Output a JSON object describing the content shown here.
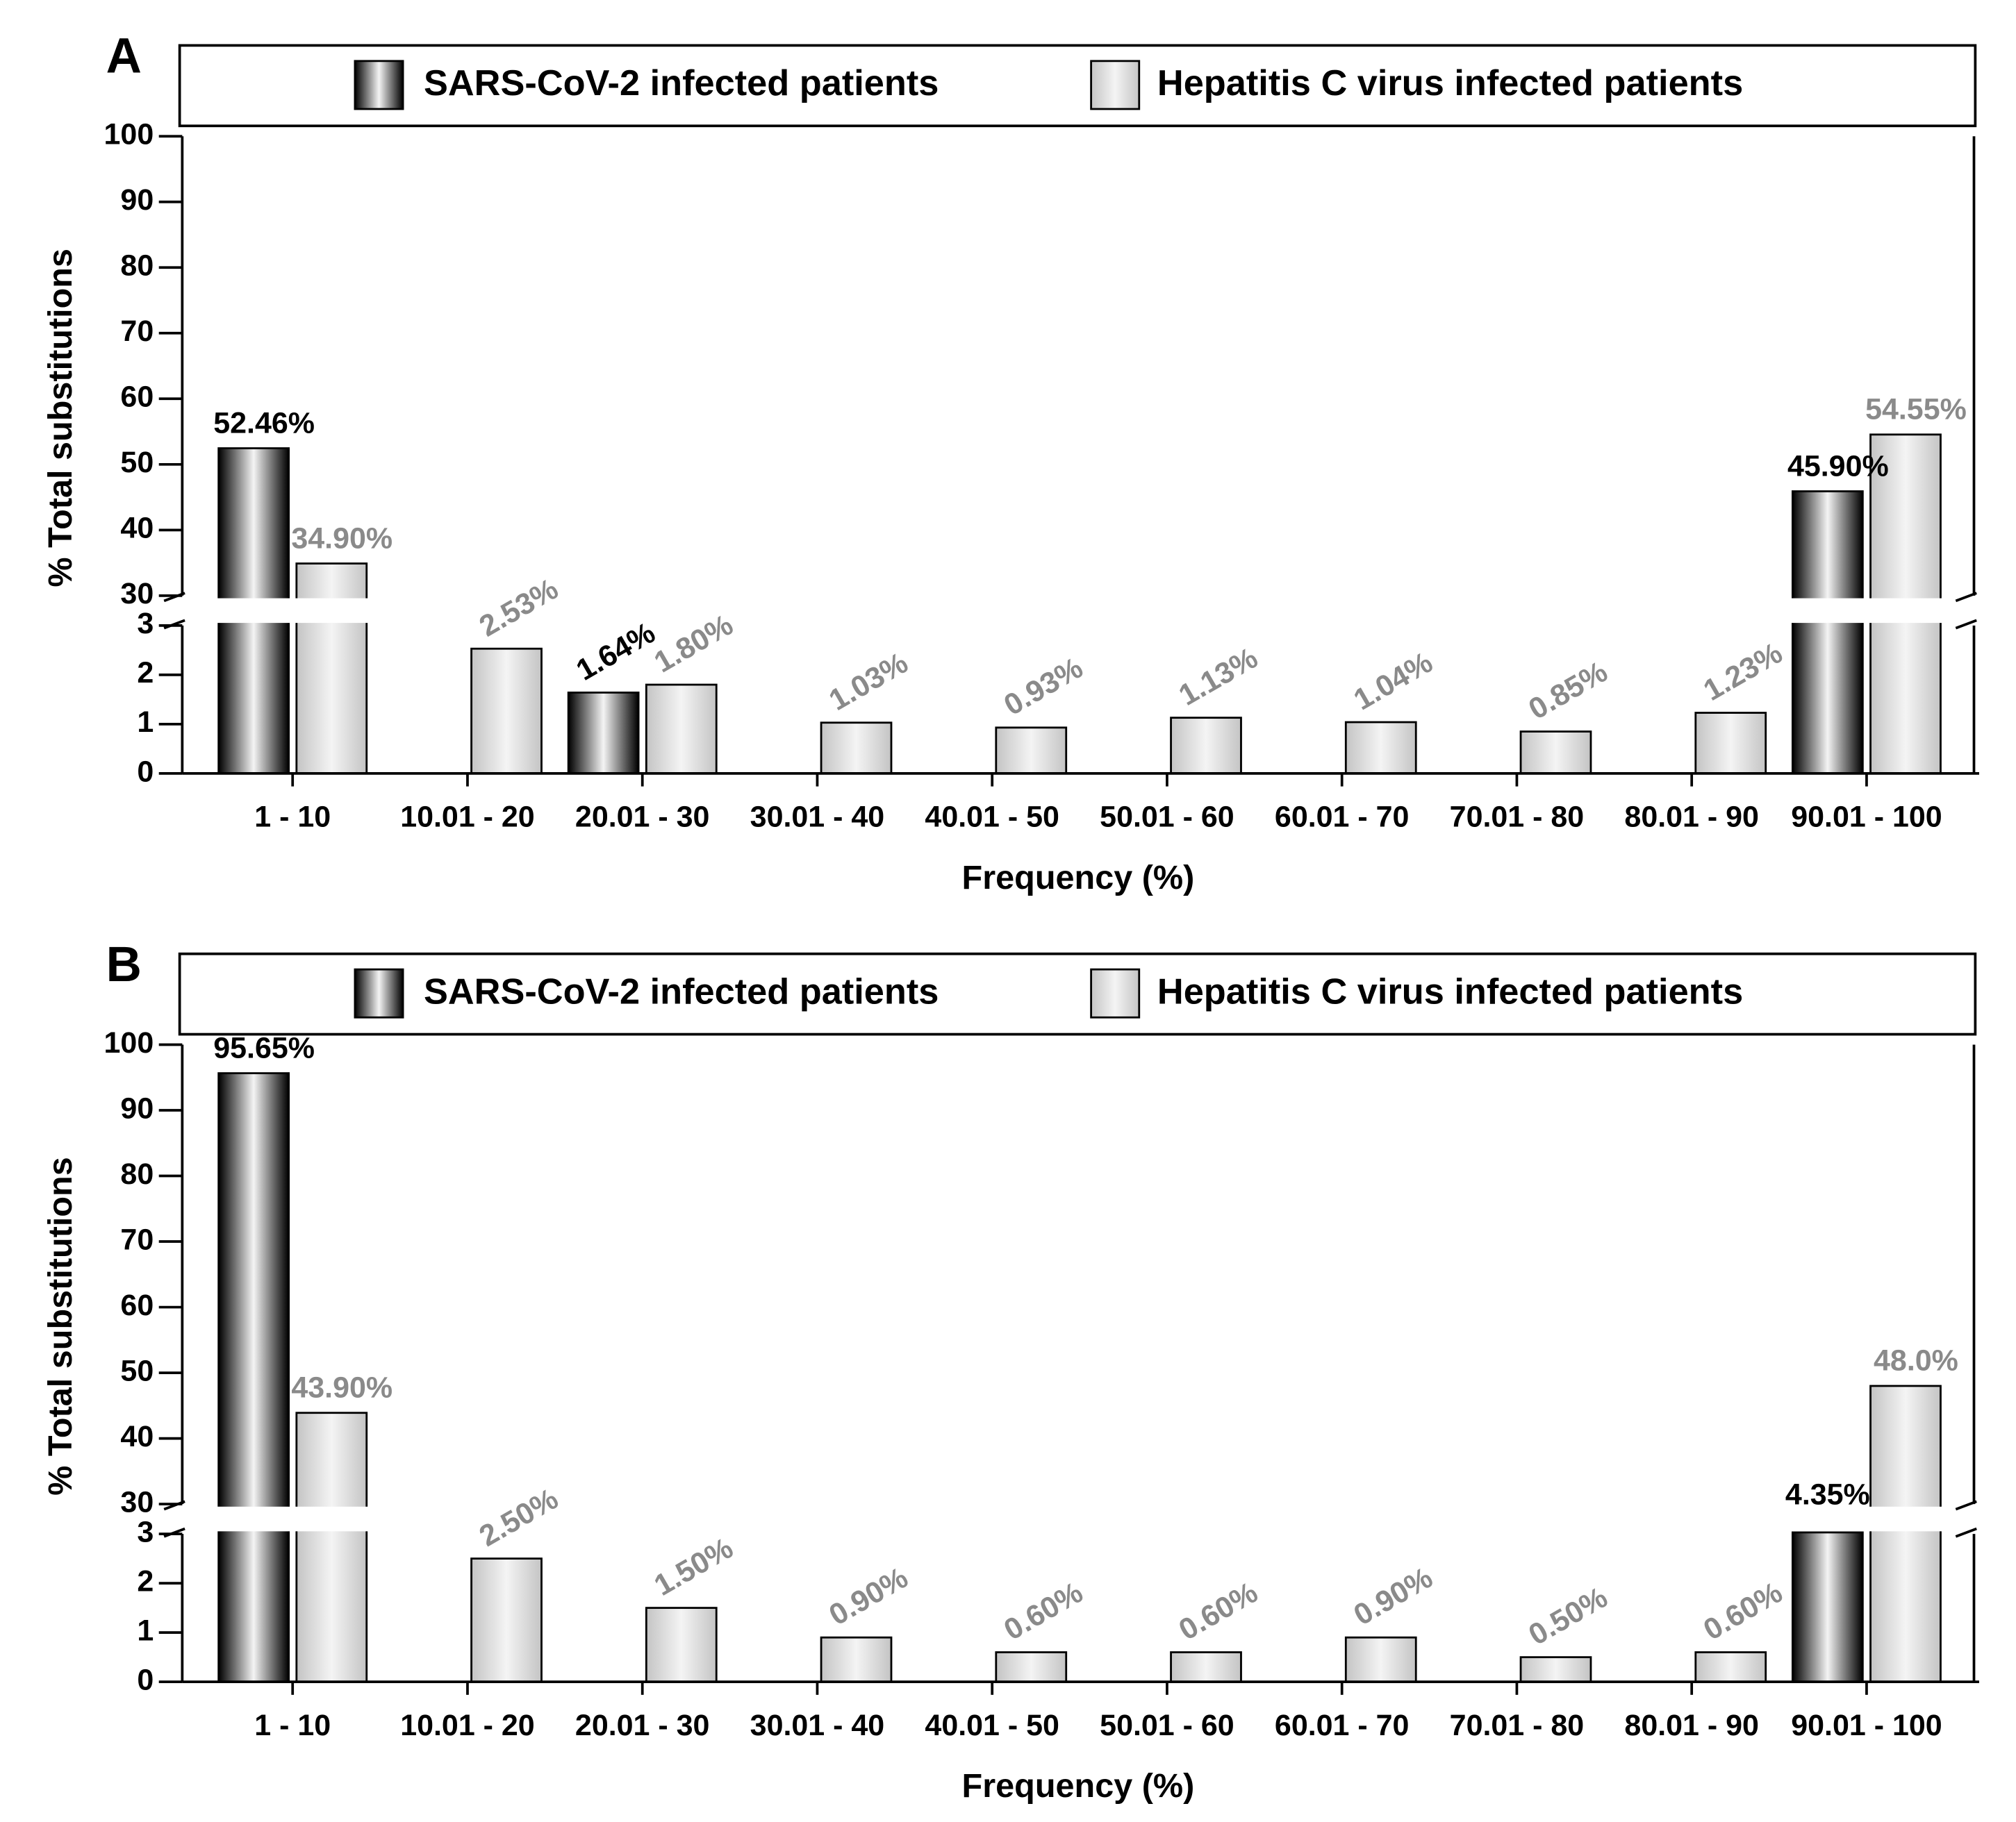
{
  "chart_data": [
    {
      "type": "bar",
      "panel_label": "A",
      "y_label": "% Total substitutions",
      "x_label": "Frequency (%)",
      "categories": [
        "1 - 10",
        "10.01 - 20",
        "20.01 - 30",
        "30.01 - 40",
        "40.01 - 50",
        "50.01 - 60",
        "60.01 - 70",
        "70.01 - 80",
        "80.01 - 90",
        "90.01 - 100"
      ],
      "series": [
        {
          "name": "SARS-CoV-2 infected patients",
          "color": "#000000",
          "label_color": "#000000",
          "values": [
            52.46,
            null,
            1.64,
            null,
            null,
            null,
            null,
            null,
            null,
            45.9
          ],
          "value_labels": [
            "52.46%",
            null,
            "1.64%",
            null,
            null,
            null,
            null,
            null,
            null,
            "45.90%"
          ]
        },
        {
          "name": "Hepatitis C virus infected patients",
          "color": "#c4c4c4",
          "label_color": "#8a8a8a",
          "values": [
            34.9,
            2.53,
            1.8,
            1.03,
            0.93,
            1.13,
            1.04,
            0.85,
            1.23,
            54.55
          ],
          "value_labels": [
            "34.90%",
            "2.53%",
            "1.80%",
            "1.03%",
            "0.93%",
            "1.13%",
            "1.04%",
            "0.85%",
            "1.23%",
            "54.55%"
          ]
        }
      ],
      "ylim": [
        0,
        100
      ],
      "ybreak": [
        3,
        30
      ],
      "yticks": [
        0,
        1,
        2,
        3,
        30,
        40,
        50,
        60,
        70,
        80,
        90,
        100
      ],
      "legend": "top"
    },
    {
      "type": "bar",
      "panel_label": "B",
      "y_label": "% Total substitutions",
      "x_label": "Frequency (%)",
      "categories": [
        "1 - 10",
        "10.01 - 20",
        "20.01 - 30",
        "30.01 - 40",
        "40.01 - 50",
        "50.01 - 60",
        "60.01 - 70",
        "70.01 - 80",
        "80.01 - 90",
        "90.01 - 100"
      ],
      "series": [
        {
          "name": "SARS-CoV-2 infected patients",
          "color": "#000000",
          "label_color": "#000000",
          "values": [
            95.65,
            null,
            null,
            null,
            null,
            null,
            null,
            null,
            null,
            4.35
          ],
          "value_labels": [
            "95.65%",
            null,
            null,
            null,
            null,
            null,
            null,
            null,
            null,
            "4.35%"
          ]
        },
        {
          "name": "Hepatitis C virus infected patients",
          "color": "#c4c4c4",
          "label_color": "#8a8a8a",
          "values": [
            43.9,
            2.5,
            1.5,
            0.9,
            0.6,
            0.6,
            0.9,
            0.5,
            0.6,
            48
          ],
          "value_labels": [
            "43.90%",
            "2.50%",
            "1.50%",
            "0.90%",
            "0.60%",
            "0.60%",
            "0.90%",
            "0.50%",
            "0.60%",
            "48.0%"
          ]
        }
      ],
      "ylim": [
        0,
        100
      ],
      "ybreak": [
        3,
        30
      ],
      "yticks": [
        0,
        1,
        2,
        3,
        30,
        40,
        50,
        60,
        70,
        80,
        90,
        100
      ],
      "legend": "top"
    }
  ]
}
